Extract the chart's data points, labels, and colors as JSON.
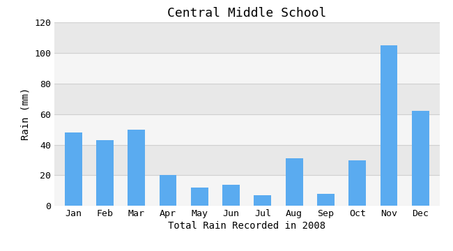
{
  "title": "Central Middle School",
  "xlabel": "Total Rain Recorded in 2008",
  "ylabel": "Rain (mm)",
  "months": [
    "Jan",
    "Feb",
    "Mar",
    "Apr",
    "May",
    "Jun",
    "Jul",
    "Aug",
    "Sep",
    "Oct",
    "Nov",
    "Dec"
  ],
  "values": [
    48,
    43,
    50,
    20,
    12,
    14,
    7,
    31,
    8,
    30,
    105,
    62
  ],
  "bar_color": "#5aabf0",
  "background_color": "#ffffff",
  "plot_bg_color": "#f0f0f0",
  "band_color_light": "#f5f5f5",
  "band_color_dark": "#e8e8e8",
  "ylim": [
    0,
    120
  ],
  "yticks": [
    0,
    20,
    40,
    60,
    80,
    100,
    120
  ],
  "grid_color": "#d0d0d0",
  "title_fontsize": 13,
  "label_fontsize": 10,
  "tick_fontsize": 9.5
}
